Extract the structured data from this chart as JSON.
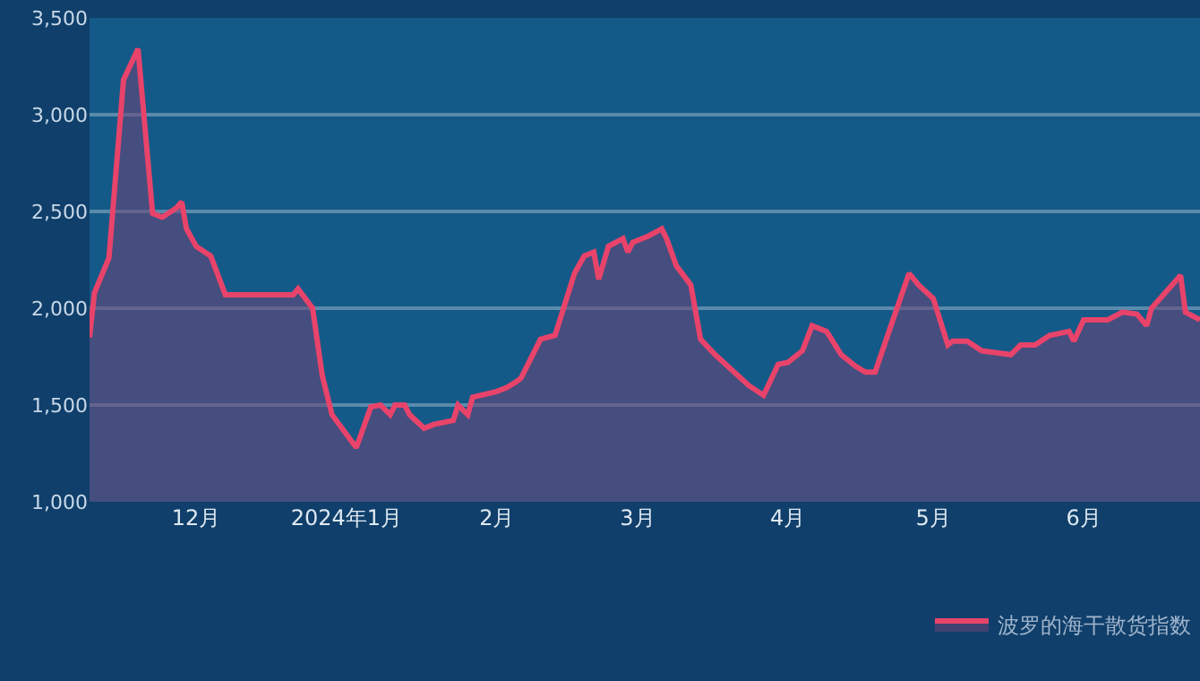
{
  "chart_data": {
    "type": "area",
    "x": [
      "2023-11-09",
      "2023-11-10",
      "2023-11-13",
      "2023-11-16",
      "2023-11-19",
      "2023-11-22",
      "2023-11-24",
      "2023-11-27",
      "2023-11-28",
      "2023-11-29",
      "2023-12-01",
      "2023-12-04",
      "2023-12-07",
      "2023-12-21",
      "2023-12-22",
      "2023-12-25",
      "2023-12-27",
      "2023-12-29",
      "2024-01-03",
      "2024-01-04",
      "2024-01-06",
      "2024-01-08",
      "2024-01-10",
      "2024-01-11",
      "2024-01-13",
      "2024-01-14",
      "2024-01-17",
      "2024-01-19",
      "2024-01-23",
      "2024-01-24",
      "2024-01-26",
      "2024-01-27",
      "2024-02-01",
      "2024-02-03",
      "2024-02-05",
      "2024-02-06",
      "2024-02-10",
      "2024-02-13",
      "2024-02-17",
      "2024-02-19",
      "2024-02-21",
      "2024-02-22",
      "2024-02-24",
      "2024-02-27",
      "2024-02-28",
      "2024-02-29",
      "2024-03-03",
      "2024-03-06",
      "2024-03-07",
      "2024-03-09",
      "2024-03-12",
      "2024-03-14",
      "2024-03-17",
      "2024-03-24",
      "2024-03-27",
      "2024-03-30",
      "2024-04-01",
      "2024-04-04",
      "2024-04-06",
      "2024-04-09",
      "2024-04-12",
      "2024-04-15",
      "2024-04-17",
      "2024-04-19",
      "2024-04-22",
      "2024-04-26",
      "2024-04-28",
      "2024-05-01",
      "2024-05-04",
      "2024-05-05",
      "2024-05-08",
      "2024-05-11",
      "2024-05-17",
      "2024-05-19",
      "2024-05-22",
      "2024-05-25",
      "2024-05-29",
      "2024-05-30",
      "2024-06-01",
      "2024-06-06",
      "2024-06-09",
      "2024-06-12",
      "2024-06-14",
      "2024-06-15",
      "2024-06-21",
      "2024-06-22",
      "2024-06-25"
    ],
    "series": [
      {
        "name": "波罗的海干散货指数",
        "color": "#e8436a",
        "values": [
          1850,
          2080,
          2260,
          3180,
          3340,
          2490,
          2470,
          2520,
          2550,
          2410,
          2320,
          2270,
          2070,
          2070,
          2100,
          2000,
          1650,
          1450,
          1280,
          1350,
          1490,
          1500,
          1450,
          1500,
          1500,
          1450,
          1380,
          1400,
          1420,
          1500,
          1450,
          1540,
          1570,
          1590,
          1620,
          1640,
          1840,
          1860,
          2180,
          2270,
          2290,
          2150,
          2320,
          2360,
          2290,
          2340,
          2370,
          2410,
          2360,
          2220,
          2120,
          1840,
          1760,
          1600,
          1550,
          1710,
          1720,
          1780,
          1910,
          1880,
          1760,
          1700,
          1670,
          1670,
          1890,
          2180,
          2120,
          2050,
          1810,
          1830,
          1830,
          1780,
          1760,
          1810,
          1810,
          1860,
          1880,
          1830,
          1940,
          1940,
          1980,
          1970,
          1910,
          2000,
          2170,
          1980,
          1940
        ]
      }
    ],
    "xlim": [
      "2023-11-09",
      "2024-06-25"
    ],
    "xticks": [
      {
        "value": "2023-12-01",
        "label": "12月"
      },
      {
        "value": "2024-01-01",
        "label": "2024年1月"
      },
      {
        "value": "2024-02-01",
        "label": "2月"
      },
      {
        "value": "2024-03-01",
        "label": "3月"
      },
      {
        "value": "2024-04-01",
        "label": "4月"
      },
      {
        "value": "2024-05-01",
        "label": "5月"
      },
      {
        "value": "2024-06-01",
        "label": "6月"
      }
    ],
    "ylim": [
      1000,
      3500
    ],
    "yticks": [
      {
        "value": 1000,
        "label": "1,000"
      },
      {
        "value": 1500,
        "label": "1,500"
      },
      {
        "value": 2000,
        "label": "2,000"
      },
      {
        "value": 2500,
        "label": "2,500"
      },
      {
        "value": 3000,
        "label": "3,000"
      },
      {
        "value": 3500,
        "label": "3,500"
      }
    ],
    "grid": "y",
    "legend": "bottom right",
    "marker": "none",
    "line_style": "solid"
  }
}
